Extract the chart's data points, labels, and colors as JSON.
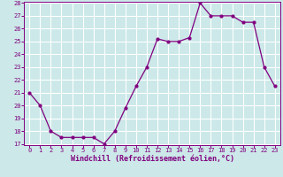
{
  "x": [
    0,
    1,
    2,
    3,
    4,
    5,
    6,
    7,
    8,
    9,
    10,
    11,
    12,
    13,
    14,
    15,
    16,
    17,
    18,
    19,
    20,
    21,
    22,
    23
  ],
  "y": [
    21,
    20,
    18,
    17.5,
    17.5,
    17.5,
    17.5,
    17,
    18,
    19.8,
    21.5,
    23,
    25.2,
    25,
    25,
    25.3,
    28,
    27,
    27,
    27,
    26.5,
    26.5,
    23,
    21.5
  ],
  "line_color": "#800080",
  "marker_color": "#800080",
  "bg_color": "#cce8e8",
  "grid_color": "#ffffff",
  "xlabel": "Windchill (Refroidissement éolien,°C)",
  "ylim": [
    17,
    28
  ],
  "xlim": [
    -0.5,
    23.5
  ],
  "yticks": [
    17,
    18,
    19,
    20,
    21,
    22,
    23,
    24,
    25,
    26,
    27,
    28
  ],
  "xticks": [
    0,
    1,
    2,
    3,
    4,
    5,
    6,
    7,
    8,
    9,
    10,
    11,
    12,
    13,
    14,
    15,
    16,
    17,
    18,
    19,
    20,
    21,
    22,
    23
  ],
  "tick_color": "#800080",
  "label_color": "#800080",
  "font_size_axis": 5.0,
  "font_size_label": 6.0,
  "marker_size": 2.0,
  "line_width": 0.9
}
